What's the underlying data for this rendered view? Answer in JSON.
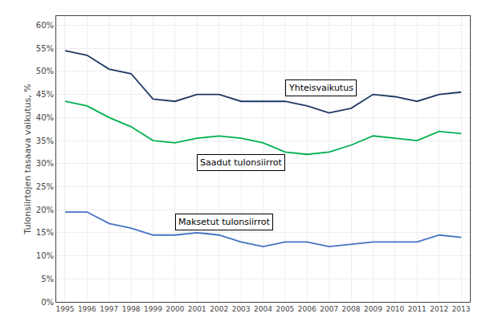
{
  "chart_data": {
    "type": "line",
    "x": [
      1995,
      1996,
      1997,
      1998,
      1999,
      2000,
      2001,
      2002,
      2003,
      2004,
      2005,
      2006,
      2007,
      2008,
      2009,
      2010,
      2011,
      2012,
      2013
    ],
    "series": [
      {
        "color": "#1F3864",
        "values": [
          54.5,
          53.5,
          50.5,
          49.5,
          44.0,
          43.5,
          45.0,
          45.0,
          43.5,
          43.5,
          43.5,
          42.5,
          41.0,
          42.0,
          45.0,
          44.5,
          43.5,
          45.0,
          45.5
        ]
      },
      {
        "color": "#00B050",
        "values": [
          43.5,
          42.5,
          40.0,
          38.0,
          35.0,
          34.5,
          35.5,
          36.0,
          35.5,
          34.5,
          32.5,
          32.0,
          32.5,
          34.0,
          36.0,
          35.5,
          35.0,
          37.0,
          36.5
        ]
      },
      {
        "color": "#4472C4",
        "values": [
          19.5,
          19.5,
          17.0,
          16.0,
          14.5,
          14.5,
          15.0,
          14.5,
          13.0,
          12.0,
          13.0,
          13.0,
          12.0,
          12.5,
          13.0,
          13.0,
          13.0,
          14.5,
          14.0
        ]
      }
    ],
    "annotations": [
      "Yhteisvaikutus",
      "Saadut tulonsiirrot",
      "Maksetut tulonsiirrot"
    ],
    "ylabel": "Tulonsiirtojen tasaava vaikutus, %",
    "xlim": [
      1994.6,
      2013.4
    ],
    "xticks": [
      1995,
      1996,
      1997,
      1998,
      1999,
      2000,
      2001,
      2002,
      2003,
      2004,
      2005,
      2006,
      2007,
      2008,
      2009,
      2010,
      2011,
      2012,
      2013
    ],
    "ylim": [
      0,
      62
    ],
    "yticks": [
      {
        "value": 0,
        "label": "0%"
      },
      {
        "value": 5,
        "label": "5%"
      },
      {
        "value": 10,
        "label": "10%"
      },
      {
        "value": 15,
        "label": "15%"
      },
      {
        "value": 20,
        "label": "20%"
      },
      {
        "value": 25,
        "label": "25%"
      },
      {
        "value": 30,
        "label": "30%"
      },
      {
        "value": 35,
        "label": "35%"
      },
      {
        "value": 40,
        "label": "40%"
      },
      {
        "value": 45,
        "label": "45%"
      },
      {
        "value": 50,
        "label": "50%"
      },
      {
        "value": 55,
        "label": "55%"
      },
      {
        "value": 60,
        "label": "60%"
      }
    ],
    "grid": true
  }
}
